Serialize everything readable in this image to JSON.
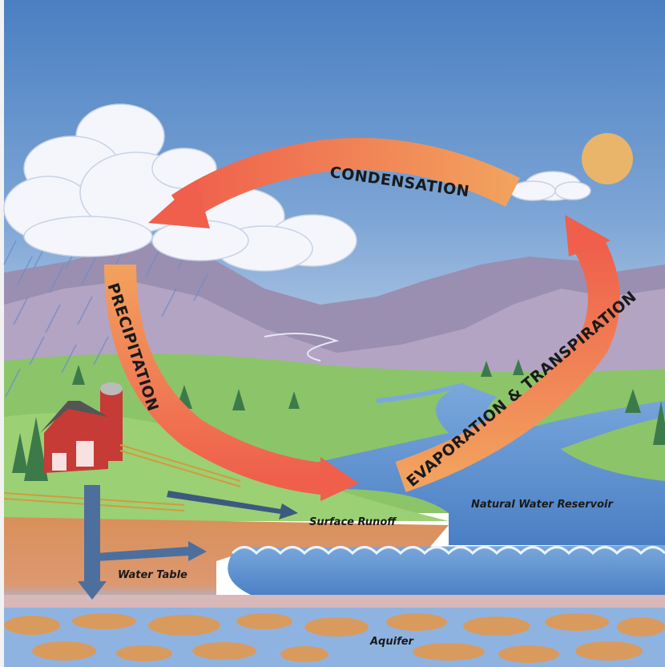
{
  "labels": {
    "condensation": "CONDENSATION",
    "precipitation": "PRECIPITATION",
    "evaporation": "EVAPORATION & TRANSPIRATION",
    "reservoir": "Natural Water Reservoir",
    "runoff": "Surface Runoff",
    "water_table": "Water Table",
    "aquifer": "Aquifer"
  }
}
